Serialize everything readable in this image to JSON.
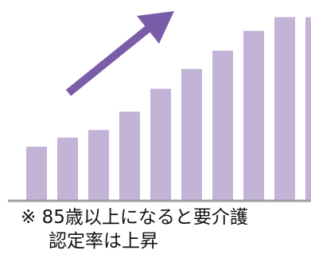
{
  "chart_data": {
    "type": "bar",
    "values": [
      35,
      41,
      46,
      58,
      73,
      86,
      98,
      111,
      120,
      120
    ],
    "ylim": [
      0,
      125
    ],
    "grid": false,
    "legend": "none",
    "trend_arrow": "up",
    "colors": {
      "bar": "#c3b3d6",
      "arrow": "#7b5ca8",
      "baseline": "#9e9e9e"
    }
  },
  "caption": {
    "line1": "※ 85歳以上になると要介護",
    "line2": "認定率は上昇"
  }
}
